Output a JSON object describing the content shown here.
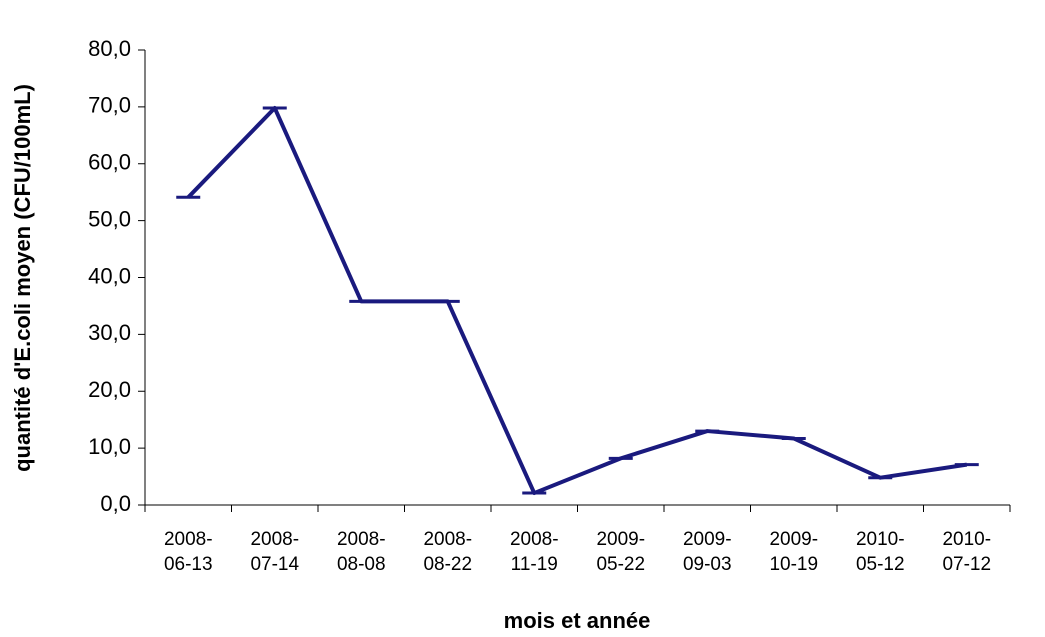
{
  "chart_data": {
    "type": "line",
    "xlabel": "mois et année",
    "ylabel": "quantité d'E.coli moyen (CFU/100mL)",
    "categories": [
      "2008-06-13",
      "2008-07-14",
      "2008-08-08",
      "2008-08-22",
      "2008-11-19",
      "2009-05-22",
      "2009-09-03",
      "2009-10-19",
      "2010-05-12",
      "2010-07-12"
    ],
    "series": [
      {
        "name": "E.coli",
        "color": "#1a1a7e",
        "values": [
          54.1,
          69.8,
          35.8,
          35.8,
          2.1,
          8.2,
          13.0,
          11.7,
          4.8,
          7.1
        ]
      }
    ],
    "ylim": [
      0,
      80
    ],
    "yticks": [
      {
        "value": 0,
        "label": "0,0"
      },
      {
        "value": 10,
        "label": "10,0"
      },
      {
        "value": 20,
        "label": "20,0"
      },
      {
        "value": 30,
        "label": "30,0"
      },
      {
        "value": 40,
        "label": "40,0"
      },
      {
        "value": 50,
        "label": "50,0"
      },
      {
        "value": 60,
        "label": "60,0"
      },
      {
        "value": 70,
        "label": "70,0"
      },
      {
        "value": 80,
        "label": "80,0"
      }
    ],
    "grid": false
  }
}
